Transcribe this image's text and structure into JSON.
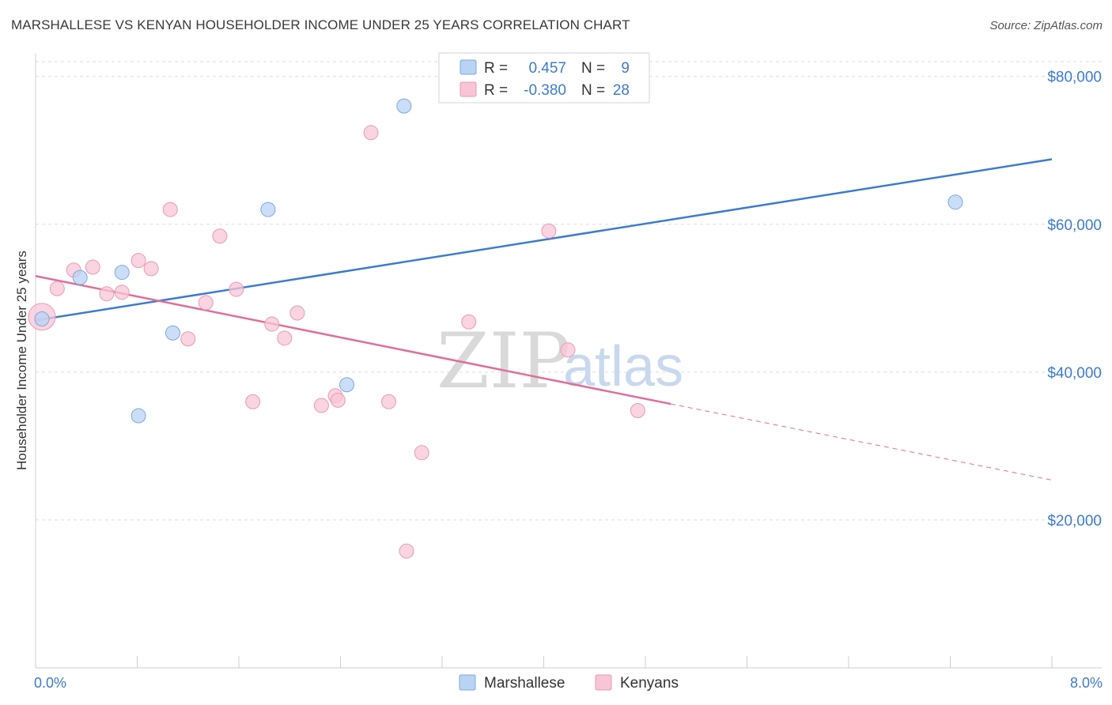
{
  "header": {
    "title": "MARSHALLESE VS KENYAN HOUSEHOLDER INCOME UNDER 25 YEARS CORRELATION CHART",
    "source": "Source: ZipAtlas.com"
  },
  "watermark": {
    "zip": "ZIP",
    "atlas": "atlas"
  },
  "colors": {
    "blue": "#3d7bd1",
    "blue_fill": "#b9d3f4",
    "pink": "#e06f99",
    "pink_fill": "#f8c5d6",
    "grid": "#dddddd"
  },
  "legend": {
    "rows": [
      {
        "r_label": "R =",
        "r_value": "0.457",
        "n_label": "N =",
        "n_value": "9"
      },
      {
        "r_label": "R =",
        "r_value": "-0.380",
        "n_label": "N =",
        "n_value": "28"
      }
    ]
  },
  "bottom_legend": {
    "blue_label": "Marshallese",
    "pink_label": "Kenyans"
  },
  "chart_data": {
    "type": "scatter",
    "title": "MARSHALLESE VS KENYAN HOUSEHOLDER INCOME UNDER 25 YEARS CORRELATION CHART",
    "xlabel": "",
    "ylabel": "Householder Income Under 25 years",
    "xlim": [
      0,
      8
    ],
    "ylim": [
      0,
      82000
    ],
    "x_tick_labels": [
      "0.0%",
      "8.0%"
    ],
    "y_tick_labels": [
      "$80,000",
      "$60,000",
      "$40,000",
      "$20,000"
    ],
    "y_ticks": [
      80000,
      60000,
      40000,
      20000
    ],
    "grid": true,
    "series": [
      {
        "name": "Marshallese",
        "color": "blue",
        "points": [
          {
            "x": 0.05,
            "y": 47200
          },
          {
            "x": 0.35,
            "y": 52800
          },
          {
            "x": 0.68,
            "y": 53500
          },
          {
            "x": 1.08,
            "y": 45300
          },
          {
            "x": 0.81,
            "y": 34100
          },
          {
            "x": 1.83,
            "y": 62000
          },
          {
            "x": 2.45,
            "y": 38300
          },
          {
            "x": 2.9,
            "y": 76000
          },
          {
            "x": 7.24,
            "y": 63000
          }
        ],
        "trend": {
          "x0": 0,
          "y0": 47000,
          "x1": 8,
          "y1": 68800
        }
      },
      {
        "name": "Kenyans",
        "color": "pink",
        "points": [
          {
            "x": 0.05,
            "y": 47500
          },
          {
            "x": 0.17,
            "y": 51300
          },
          {
            "x": 0.3,
            "y": 53800
          },
          {
            "x": 0.45,
            "y": 54200
          },
          {
            "x": 0.56,
            "y": 50600
          },
          {
            "x": 0.68,
            "y": 50800
          },
          {
            "x": 0.81,
            "y": 55100
          },
          {
            "x": 0.91,
            "y": 54000
          },
          {
            "x": 1.06,
            "y": 62000
          },
          {
            "x": 1.2,
            "y": 44500
          },
          {
            "x": 1.34,
            "y": 49400
          },
          {
            "x": 1.45,
            "y": 58400
          },
          {
            "x": 1.58,
            "y": 51200
          },
          {
            "x": 1.71,
            "y": 36000
          },
          {
            "x": 1.86,
            "y": 46500
          },
          {
            "x": 1.96,
            "y": 44600
          },
          {
            "x": 2.06,
            "y": 48000
          },
          {
            "x": 2.25,
            "y": 35500
          },
          {
            "x": 2.36,
            "y": 36800
          },
          {
            "x": 2.38,
            "y": 36200
          },
          {
            "x": 2.64,
            "y": 72400
          },
          {
            "x": 2.78,
            "y": 36000
          },
          {
            "x": 2.92,
            "y": 15800
          },
          {
            "x": 3.04,
            "y": 29100
          },
          {
            "x": 3.41,
            "y": 46800
          },
          {
            "x": 4.04,
            "y": 59100
          },
          {
            "x": 4.19,
            "y": 43000
          },
          {
            "x": 4.74,
            "y": 34800
          }
        ],
        "trend": {
          "x0": 0,
          "y0": 53000,
          "x1": 5.0,
          "y1": 35700,
          "dash_x1": 8,
          "dash_y1": 25400
        }
      }
    ]
  }
}
